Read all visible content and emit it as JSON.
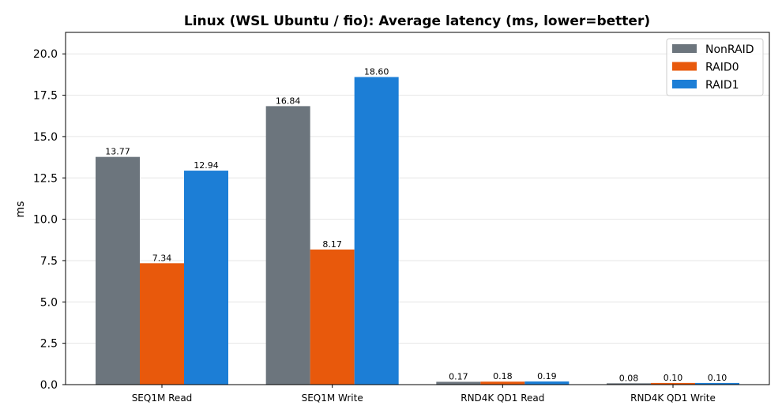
{
  "chart_data": {
    "type": "bar",
    "title": "Linux (WSL Ubuntu / fio): Average latency (ms, lower=better)",
    "ylabel": "ms",
    "xlabel": "",
    "ylim": [
      0,
      21.3
    ],
    "yticks": [
      "0.0",
      "2.5",
      "5.0",
      "7.5",
      "10.0",
      "12.5",
      "15.0",
      "17.5",
      "20.0"
    ],
    "categories": [
      "SEQ1M Read",
      "SEQ1M Write",
      "RND4K QD1 Read",
      "RND4K QD1 Write"
    ],
    "series": [
      {
        "name": "NonRAID",
        "color": "#6c757d",
        "values": [
          13.77,
          16.84,
          0.17,
          0.08
        ],
        "labels": [
          "13.77",
          "16.84",
          "0.17",
          "0.08"
        ]
      },
      {
        "name": "RAID0",
        "color": "#e8590c",
        "values": [
          7.34,
          8.17,
          0.18,
          0.1
        ],
        "labels": [
          "7.34",
          "8.17",
          "0.18",
          "0.10"
        ]
      },
      {
        "name": "RAID1",
        "color": "#1c7ed6",
        "values": [
          12.94,
          18.6,
          0.19,
          0.1
        ],
        "labels": [
          "12.94",
          "18.60",
          "0.19",
          "0.10"
        ]
      }
    ],
    "grid": "y",
    "legend": "top-right"
  }
}
